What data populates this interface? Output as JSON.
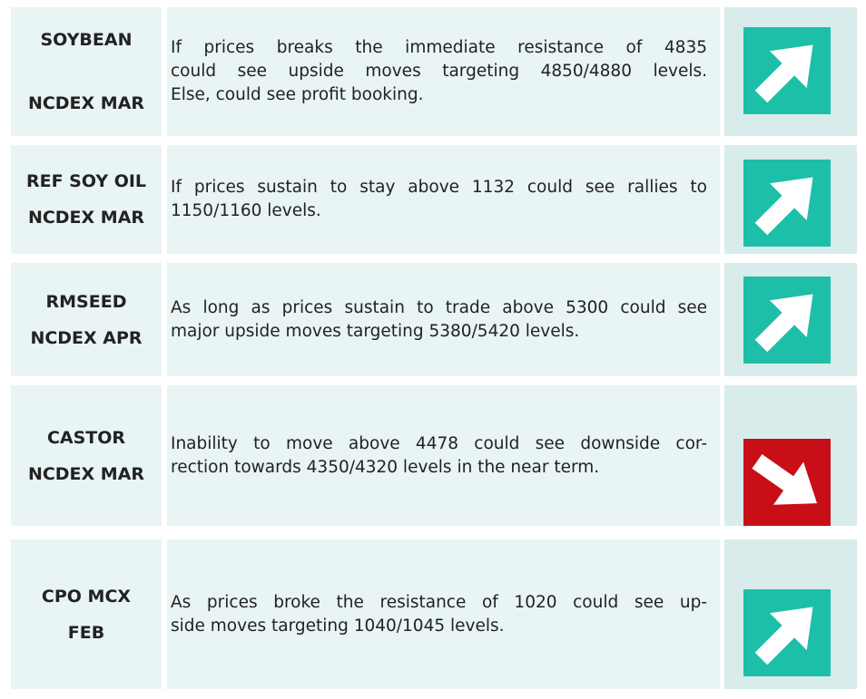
{
  "rows": [
    {
      "commodity": [
        "SOYBEAN",
        "NCDEX MAR"
      ],
      "view": [
        "If prices breaks the immediate resistance of 4835",
        "could see upside moves targeting 4850/4880 levels.",
        "Else, could see profit booking."
      ]
    },
    {
      "commodity": [
        "REF SOY OIL",
        "NCDEX MAR"
      ],
      "view": [
        "If prices sustain to stay above 1132 could see rallies to",
        "1150/1160 levels."
      ]
    },
    {
      "commodity": [
        "RMSEED",
        "NCDEX APR"
      ],
      "view": [
        "As long as prices sustain to trade above 5300 could see",
        "major upside moves targeting 5380/5420 levels."
      ]
    },
    {
      "commodity": [
        "CASTOR",
        "NCDEX MAR"
      ],
      "view": [
        "Inability to move above 4478 could see downside cor-",
        "rection towards 4350/4320 levels in the near term."
      ]
    },
    {
      "commodity": [
        "CPO MCX",
        "FEB"
      ],
      "view": [
        "As prices broke the resistance of 1020 could see up-",
        "side moves targeting 1040/1045 levels."
      ]
    }
  ]
}
